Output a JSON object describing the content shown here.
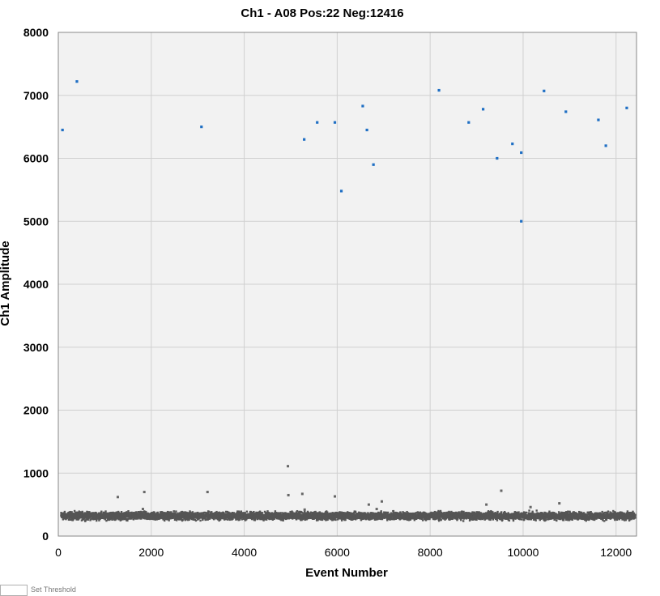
{
  "chart_data": {
    "type": "scatter",
    "title": "Ch1 - A08 Pos:22 Neg:12416",
    "xlabel": "Event Number",
    "ylabel": "Ch1 Amplitude",
    "xlim": [
      0,
      12440
    ],
    "ylim": [
      0,
      8000
    ],
    "xticks": [
      0,
      2000,
      4000,
      6000,
      8000,
      10000,
      12000
    ],
    "yticks": [
      0,
      1000,
      2000,
      3000,
      4000,
      5000,
      6000,
      7000,
      8000
    ],
    "grid": true,
    "colors": {
      "positive": "#1f6fc4",
      "negative": "#555555",
      "plot_background": "#f2f2f2",
      "grid": "#d0d0d0"
    },
    "series": [
      {
        "name": "Pos",
        "points": [
          [
            90,
            6450
          ],
          [
            400,
            7220
          ],
          [
            3080,
            6500
          ],
          [
            5290,
            6300
          ],
          [
            5570,
            6570
          ],
          [
            5950,
            6570
          ],
          [
            6090,
            5480
          ],
          [
            6550,
            6830
          ],
          [
            6640,
            6450
          ],
          [
            6780,
            5900
          ],
          [
            8190,
            7080
          ],
          [
            8830,
            6570
          ],
          [
            9140,
            6780
          ],
          [
            9440,
            6000
          ],
          [
            9770,
            6230
          ],
          [
            9960,
            6090
          ],
          [
            9960,
            5000
          ],
          [
            10450,
            7070
          ],
          [
            10920,
            6740
          ],
          [
            11620,
            6610
          ],
          [
            11780,
            6200
          ],
          [
            12230,
            6800
          ]
        ]
      },
      {
        "name": "Neg",
        "band": {
          "mean": 320,
          "spread": 55,
          "count": 12416
        },
        "outliers": [
          [
            1280,
            620
          ],
          [
            1850,
            700
          ],
          [
            3210,
            700
          ],
          [
            4940,
            1110
          ],
          [
            4950,
            650
          ],
          [
            5250,
            670
          ],
          [
            5950,
            630
          ],
          [
            6680,
            500
          ],
          [
            6960,
            550
          ],
          [
            9210,
            500
          ],
          [
            9530,
            720
          ],
          [
            10160,
            460
          ],
          [
            10780,
            520
          ],
          [
            1820,
            430
          ],
          [
            5300,
            420
          ],
          [
            6850,
            430
          ]
        ]
      }
    ]
  },
  "footer": {
    "threshold_label": "Set Threshold"
  }
}
